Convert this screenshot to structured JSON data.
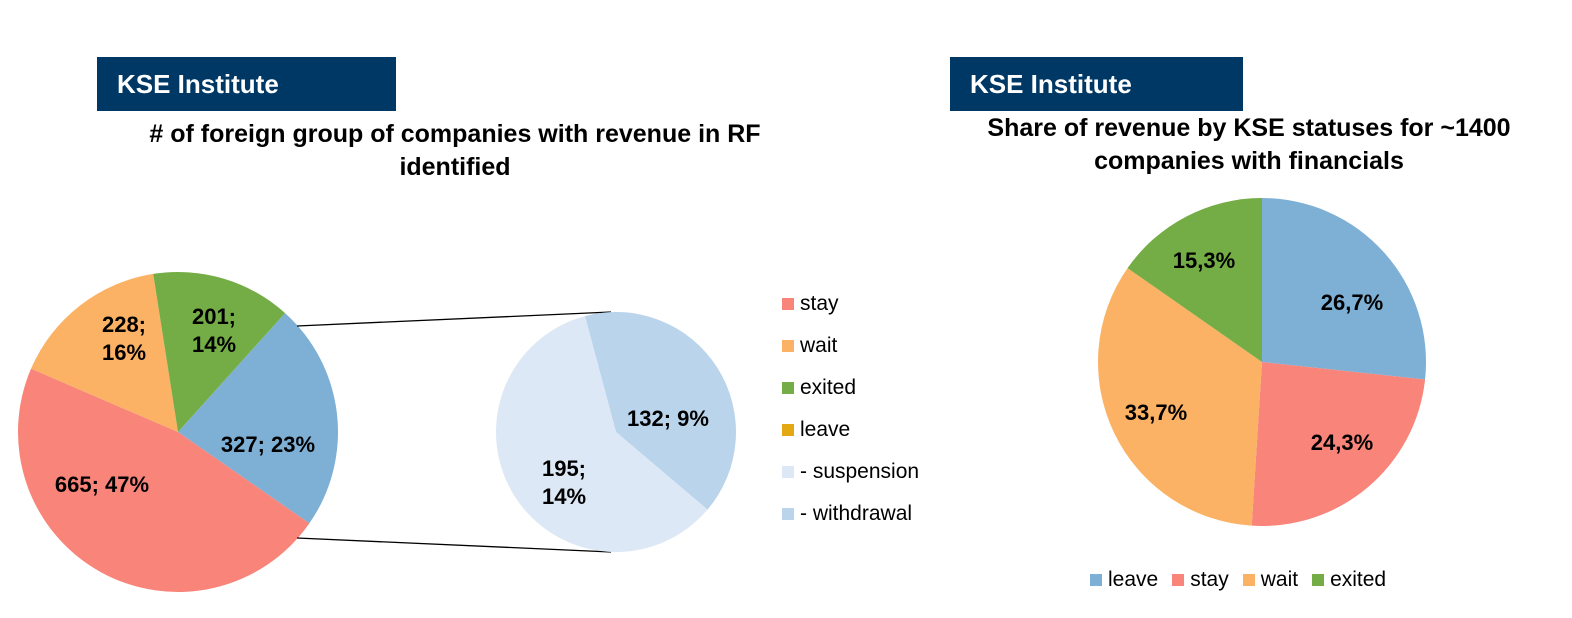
{
  "left": {
    "brand": "KSE Institute",
    "title_line1": "# of foreign group of companies with revenue in RF",
    "title_line2": "identified"
  },
  "right": {
    "brand": "KSE Institute",
    "title_line1": "Share of revenue by KSE statuses for ~1400",
    "title_line2": "companies with financials"
  },
  "colors": {
    "banner": "#003865",
    "stay": "#F8847A",
    "wait": "#FBB265",
    "exited": "#74AD45",
    "leave_main": "#7EB0D5",
    "leave_legend": "#E3A812",
    "suspension": "#DCE8F5",
    "withdrawal": "#BAD4EC"
  },
  "chart_data": [
    {
      "type": "pie",
      "slices": [
        {
          "name": "leave",
          "value": 327,
          "label_line1": "327; 23%",
          "label_line2": ""
        },
        {
          "name": "stay",
          "value": 665,
          "label_line1": "665; 47%",
          "label_line2": ""
        },
        {
          "name": "wait",
          "value": 228,
          "label_line1": "228;",
          "label_line2": "16%"
        },
        {
          "name": "exited",
          "value": 201,
          "label_line1": "201;",
          "label_line2": "14%"
        }
      ],
      "breakdown_of": "leave",
      "breakdown": [
        {
          "name": "- withdrawal",
          "value": 132,
          "label_line1": "132; 9%",
          "label_line2": ""
        },
        {
          "name": "- suspension",
          "value": 195,
          "label_line1": "195;",
          "label_line2": "14%"
        }
      ],
      "legend": [
        "stay",
        "wait",
        "exited",
        "leave",
        "- suspension",
        "- withdrawal"
      ],
      "legend_position": "right"
    },
    {
      "type": "pie",
      "slices": [
        {
          "name": "leave",
          "value": 26.7,
          "label": "26,7%"
        },
        {
          "name": "stay",
          "value": 24.3,
          "label": "24,3%"
        },
        {
          "name": "wait",
          "value": 33.7,
          "label": "33,7%"
        },
        {
          "name": "exited",
          "value": 15.3,
          "label": "15,3%"
        }
      ],
      "legend": [
        "leave",
        "stay",
        "wait",
        "exited"
      ],
      "legend_position": "bottom"
    }
  ]
}
